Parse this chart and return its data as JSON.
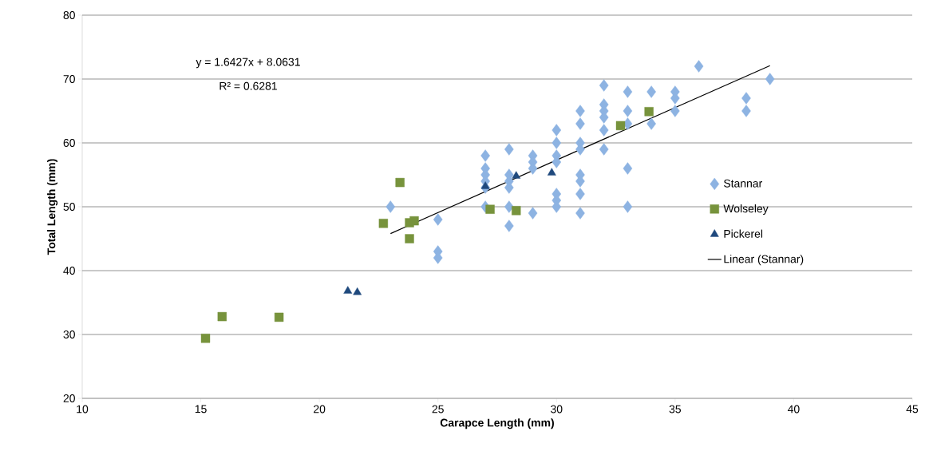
{
  "chart_data": {
    "type": "scatter",
    "xlabel": "Carapce Length (mm)",
    "ylabel": "Total Length (mm)",
    "xlim": [
      10,
      45
    ],
    "xticks": [
      10,
      15,
      20,
      25,
      30,
      35,
      40,
      45
    ],
    "ylim": [
      20,
      80
    ],
    "yticks": [
      20,
      30,
      40,
      50,
      60,
      70,
      80
    ],
    "grid": "y",
    "legend": "right",
    "annotations": [
      "y = 1.6427x + 8.0631",
      "R² = 0.6281"
    ],
    "series": [
      {
        "name": "Stannar",
        "color": "#8db3e2",
        "marker": "diamond",
        "x": [
          23,
          25,
          25,
          25,
          27,
          27,
          27,
          27,
          27,
          27,
          28,
          28,
          28,
          28,
          28,
          28,
          29,
          29,
          29,
          29,
          30,
          30,
          30,
          30,
          30,
          30,
          30,
          31,
          31,
          31,
          31,
          31,
          31,
          31,
          31,
          32,
          32,
          32,
          32,
          32,
          32,
          33,
          33,
          33,
          33,
          33,
          34,
          34,
          35,
          35,
          35,
          36,
          38,
          38,
          39
        ],
        "values": [
          50,
          48,
          43,
          42,
          58,
          56,
          55,
          54,
          53,
          50,
          59,
          55,
          54,
          53,
          50,
          47,
          58,
          57,
          56,
          49,
          62,
          60,
          58,
          57,
          52,
          51,
          50,
          65,
          63,
          60,
          59,
          55,
          54,
          52,
          49,
          69,
          66,
          65,
          64,
          62,
          59,
          68,
          65,
          63,
          56,
          50,
          68,
          63,
          68,
          67,
          65,
          72,
          67,
          65,
          70
        ]
      },
      {
        "name": "Wolseley",
        "color": "#77933c",
        "marker": "square",
        "x": [
          15.2,
          15.9,
          18.3,
          22.7,
          23.4,
          23.8,
          23.8,
          24.0,
          27.2,
          28.3,
          32.7,
          33.9
        ],
        "values": [
          29.4,
          32.8,
          32.7,
          47.4,
          53.8,
          45.0,
          47.5,
          47.8,
          49.6,
          49.4,
          62.7,
          64.9
        ]
      },
      {
        "name": "Pickerel",
        "color": "#1f497d",
        "marker": "triangle",
        "x": [
          21.2,
          21.6,
          27.0,
          28.3,
          29.8
        ],
        "values": [
          36.8,
          36.6,
          53.2,
          54.8,
          55.3
        ]
      },
      {
        "name": "Linear (Stannar)",
        "type": "line",
        "color": "#000000",
        "marker": "none",
        "line_style": "solid",
        "x": [
          23,
          39
        ],
        "values": [
          45.8,
          72.1
        ]
      }
    ]
  }
}
